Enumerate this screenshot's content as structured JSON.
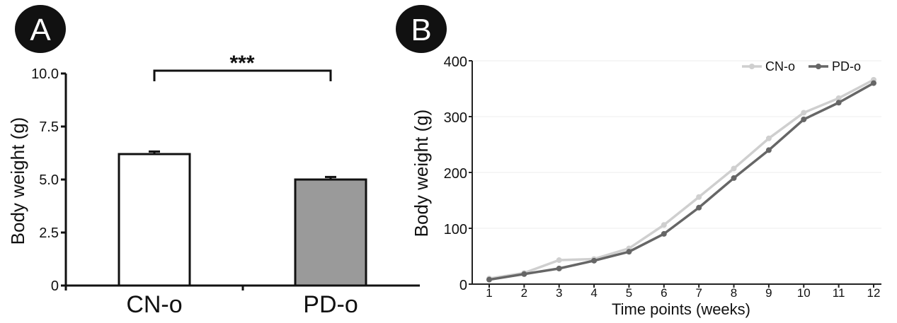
{
  "chart_data": [
    {
      "panel": "A",
      "type": "bar",
      "categories": [
        "CN-o",
        "PD-o"
      ],
      "values": [
        6.2,
        5.0
      ],
      "errors": [
        0.12,
        0.12
      ],
      "bar_colors": [
        "#ffffff",
        "#9a9a9a"
      ],
      "ylabel": "Body weight (g)",
      "ylim": [
        0,
        10
      ],
      "yticks": [
        0,
        2.5,
        5.0,
        7.5,
        10.0
      ],
      "ytick_labels": [
        "0",
        "2.5",
        "5.0",
        "7.5",
        "10.0"
      ],
      "significance": "***"
    },
    {
      "panel": "B",
      "type": "line",
      "x": [
        1,
        2,
        3,
        4,
        5,
        6,
        7,
        8,
        9,
        10,
        11,
        12
      ],
      "xtick_labels": [
        "1",
        "2",
        "3",
        "4",
        "5",
        "6",
        "7",
        "8",
        "9",
        "10",
        "11",
        "12"
      ],
      "series": [
        {
          "name": "CN-o",
          "color": "#cfcfcf",
          "values": [
            10,
            20,
            43,
            45,
            64,
            106,
            156,
            207,
            261,
            307,
            333,
            366
          ]
        },
        {
          "name": "PD-o",
          "color": "#666666",
          "values": [
            8,
            18,
            28,
            42,
            58,
            90,
            137,
            190,
            240,
            295,
            325,
            360
          ]
        }
      ],
      "xlabel": "Time points (weeks)",
      "ylabel": "Body weight (g)",
      "ylim": [
        0,
        400
      ],
      "yticks": [
        0,
        100,
        200,
        300,
        400
      ],
      "ytick_labels": [
        "0",
        "100",
        "200",
        "300",
        "400"
      ],
      "grid": "horizontal",
      "legend": "top-right"
    }
  ],
  "badges": {
    "a": "A",
    "b": "B"
  }
}
